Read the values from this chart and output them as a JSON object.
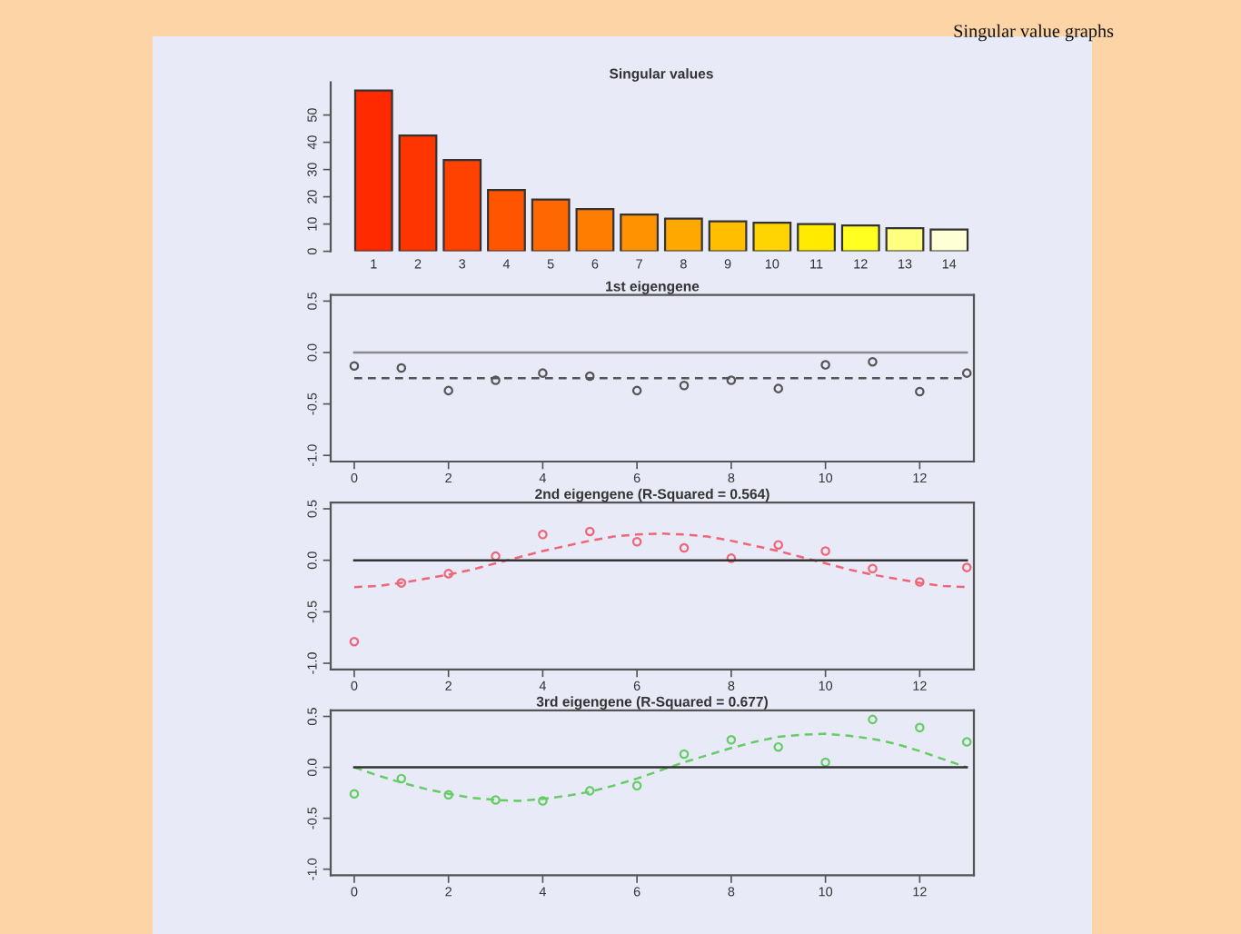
{
  "chart_data": [
    {
      "type": "bar",
      "title": "Singular values",
      "annotations": [
        "Singular value graphs"
      ],
      "categories": [
        "1",
        "2",
        "3",
        "4",
        "5",
        "6",
        "7",
        "8",
        "9",
        "10",
        "11",
        "12",
        "13",
        "14"
      ],
      "values": [
        59,
        42.5,
        33.5,
        22.5,
        19,
        15.5,
        13.5,
        12,
        11,
        10.5,
        10,
        9.5,
        8.5,
        8
      ],
      "colors": [
        "#ff2a00",
        "#ff3500",
        "#ff4200",
        "#ff5500",
        "#ff6800",
        "#ff7d00",
        "#ff9200",
        "#ffa800",
        "#ffbe00",
        "#ffd400",
        "#ffea00",
        "#ffff20",
        "#ffff80",
        "#ffffd5"
      ],
      "ylim": [
        0,
        62
      ],
      "yticks": [
        0,
        10,
        20,
        30,
        40,
        50
      ]
    },
    {
      "type": "scatter",
      "title": "1st eigengene",
      "xlim": [
        -0.5,
        13.15
      ],
      "xticks": [
        0,
        2,
        4,
        6,
        8,
        10,
        12
      ],
      "ylim": [
        -1.06,
        0.56
      ],
      "yticks": [
        {
          "value": -1,
          "label": "-1.0"
        },
        {
          "value": -0.5,
          "label": "-0.5"
        },
        {
          "value": 0,
          "label": "0.0"
        },
        {
          "value": 0.5,
          "label": "0.5"
        }
      ],
      "series": [
        {
          "type": "scatter",
          "color": "#555555",
          "marker": "circle",
          "x": [
            0,
            1,
            2,
            3,
            4,
            5,
            6,
            7,
            8,
            9,
            10,
            11,
            12,
            13
          ],
          "values": [
            -0.13,
            -0.15,
            -0.37,
            -0.27,
            -0.2,
            -0.23,
            -0.37,
            -0.32,
            -0.27,
            -0.35,
            -0.12,
            -0.09,
            -0.38,
            -0.2
          ]
        },
        {
          "type": "line",
          "color": "#555555",
          "line_style": "dashed",
          "x": [
            0,
            13
          ],
          "values": [
            -0.25,
            -0.25
          ]
        },
        {
          "type": "line",
          "color": "#8a8a8a",
          "line_style": "solid",
          "x": [
            0,
            13
          ],
          "values": [
            0,
            0
          ]
        }
      ]
    },
    {
      "type": "scatter",
      "title": "2nd eigengene (R-Squared = 0.564)",
      "xlim": [
        -0.5,
        13.15
      ],
      "xticks": [
        0,
        2,
        4,
        6,
        8,
        10,
        12
      ],
      "ylim": [
        -1.06,
        0.56
      ],
      "yticks": [
        {
          "value": -1,
          "label": "-1.0"
        },
        {
          "value": -0.5,
          "label": "-0.5"
        },
        {
          "value": 0,
          "label": "0.0"
        },
        {
          "value": 0.5,
          "label": "0.5"
        }
      ],
      "series": [
        {
          "type": "scatter",
          "color": "#ee6677",
          "marker": "circle",
          "x": [
            0,
            1,
            2,
            3,
            4,
            5,
            6,
            7,
            8,
            9,
            10,
            11,
            12,
            13
          ],
          "values": [
            -0.79,
            -0.22,
            -0.13,
            0.04,
            0.25,
            0.28,
            0.18,
            0.12,
            0.02,
            0.15,
            0.09,
            -0.08,
            -0.21,
            -0.07
          ]
        },
        {
          "type": "line",
          "color": "#ee6677",
          "line_style": "dashed",
          "x": [
            0,
            0.5,
            1,
            1.5,
            2,
            2.5,
            3,
            3.5,
            4,
            4.5,
            5,
            5.5,
            6,
            6.5,
            7,
            7.5,
            8,
            8.5,
            9,
            9.5,
            10,
            10.5,
            11,
            11.5,
            12,
            12.5,
            13
          ],
          "values": [
            -0.26,
            -0.25,
            -0.22,
            -0.18,
            -0.14,
            -0.09,
            -0.03,
            0.03,
            0.09,
            0.14,
            0.19,
            0.23,
            0.25,
            0.26,
            0.25,
            0.23,
            0.19,
            0.14,
            0.09,
            0.03,
            -0.03,
            -0.09,
            -0.14,
            -0.18,
            -0.22,
            -0.25,
            -0.26
          ]
        },
        {
          "type": "line",
          "color": "#333333",
          "line_style": "solid",
          "x": [
            0,
            13
          ],
          "values": [
            0,
            0
          ]
        }
      ]
    },
    {
      "type": "scatter",
      "title": "3rd eigengene (R-Squared = 0.677)",
      "xlim": [
        -0.5,
        13.15
      ],
      "xticks": [
        0,
        2,
        4,
        6,
        8,
        10,
        12
      ],
      "ylim": [
        -1.06,
        0.56
      ],
      "yticks": [
        {
          "value": -1,
          "label": "-1.0"
        },
        {
          "value": -0.5,
          "label": "-0.5"
        },
        {
          "value": 0,
          "label": "0.0"
        },
        {
          "value": 0.5,
          "label": "0.5"
        }
      ],
      "series": [
        {
          "type": "scatter",
          "color": "#66cc66",
          "marker": "circle",
          "x": [
            0,
            1,
            2,
            3,
            4,
            5,
            6,
            7,
            8,
            9,
            10,
            11,
            12,
            13
          ],
          "values": [
            -0.26,
            -0.11,
            -0.27,
            -0.32,
            -0.33,
            -0.23,
            -0.18,
            0.13,
            0.27,
            0.2,
            0.05,
            0.47,
            0.39,
            0.25
          ]
        },
        {
          "type": "line",
          "color": "#66cc66",
          "line_style": "dashed",
          "x": [
            0,
            0.5,
            1,
            1.5,
            2,
            2.5,
            3,
            3.5,
            4,
            4.5,
            5,
            5.5,
            6,
            6.5,
            7,
            7.5,
            8,
            8.5,
            9,
            9.5,
            10,
            10.5,
            11,
            11.5,
            12,
            12.5,
            13
          ],
          "values": [
            0,
            -0.08,
            -0.15,
            -0.21,
            -0.26,
            -0.3,
            -0.32,
            -0.33,
            -0.31,
            -0.28,
            -0.24,
            -0.18,
            -0.11,
            -0.03,
            0.05,
            0.12,
            0.19,
            0.25,
            0.3,
            0.32,
            0.33,
            0.31,
            0.28,
            0.23,
            0.16,
            0.08,
            0
          ]
        },
        {
          "type": "line",
          "color": "#333333",
          "line_style": "solid",
          "x": [
            0,
            13
          ],
          "values": [
            0,
            0
          ]
        }
      ]
    }
  ]
}
